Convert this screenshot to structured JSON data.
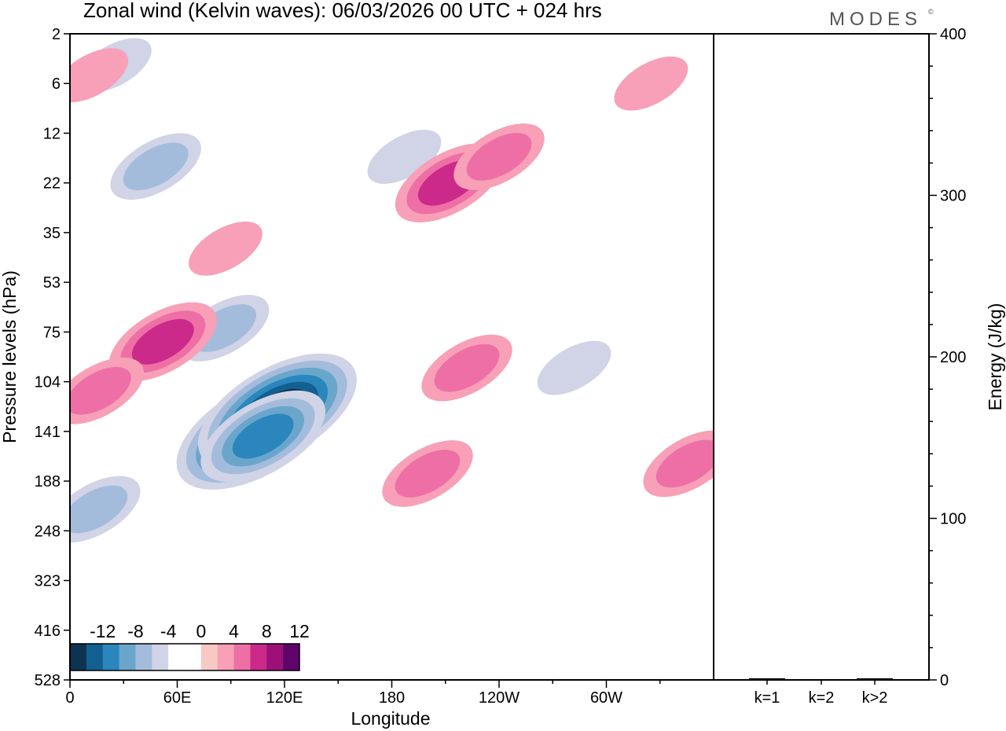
{
  "header": {
    "title": "Zonal wind (Kelvin waves):  06/03/2026  00 UTC  + 024 hrs",
    "logo": "MODES",
    "logo_mark": "©"
  },
  "chart_data": [
    {
      "type": "heatmap",
      "title": "Zonal wind (Kelvin waves):  06/03/2026  00 UTC  + 024 hrs",
      "xlabel": "Longitude",
      "ylabel": "Pressure levels (hPa)",
      "x_ticks": [
        "0",
        "60E",
        "120E",
        "180",
        "120W",
        "60W"
      ],
      "y_ticks": [
        "2",
        "6",
        "12",
        "22",
        "35",
        "53",
        "75",
        "104",
        "141",
        "188",
        "248",
        "323",
        "416",
        "528"
      ],
      "x_range_deg_east": [
        0,
        360
      ],
      "colorbar": {
        "labels": [
          "-12",
          "-8",
          "-4",
          "0",
          "4",
          "8",
          "12"
        ],
        "colors": [
          "#0c3350",
          "#11608f",
          "#2a86bd",
          "#6aa6cc",
          "#a3bcdb",
          "#d1d3e6",
          "#ffffff",
          "#ffffff",
          "#f8c8c4",
          "#f7a0b7",
          "#ee6fa6",
          "#cb2a8b",
          "#9c1178",
          "#5f046b"
        ]
      },
      "blobs": [
        {
          "lon": 104,
          "p": 141,
          "value": -14
        },
        {
          "lon": 116,
          "p": 125,
          "value": -14
        },
        {
          "lon": 108,
          "p": 145,
          "value": -10
        },
        {
          "lon": 14,
          "p": 220,
          "value": -6
        },
        {
          "lon": 48,
          "p": 18,
          "value": -6
        },
        {
          "lon": 86,
          "p": 73,
          "value": -6
        },
        {
          "lon": 187,
          "p": 16,
          "value": -4
        },
        {
          "lon": 282,
          "p": 95,
          "value": -5
        },
        {
          "lon": 25,
          "p": 4,
          "value": -4
        },
        {
          "lon": 52,
          "p": 80,
          "value": 8
        },
        {
          "lon": 16,
          "p": 110,
          "value": 7
        },
        {
          "lon": 212,
          "p": 22,
          "value": 9
        },
        {
          "lon": 240,
          "p": 16,
          "value": 6
        },
        {
          "lon": 200,
          "p": 180,
          "value": 6
        },
        {
          "lon": 222,
          "p": 95,
          "value": 6
        },
        {
          "lon": 346,
          "p": 170,
          "value": 6
        },
        {
          "lon": 87,
          "p": 40,
          "value": 4
        },
        {
          "lon": 12,
          "p": 5,
          "value": 4
        },
        {
          "lon": 325,
          "p": 6,
          "value": 4
        }
      ]
    },
    {
      "type": "bar",
      "categories": [
        "k=1",
        "k=2",
        "k>2"
      ],
      "values": [
        1,
        0.5,
        1
      ],
      "ylabel": "Energy (J/kg)",
      "y_ticks": [
        "0",
        "100",
        "200",
        "300",
        "400"
      ],
      "ylim": [
        0,
        400
      ]
    }
  ]
}
